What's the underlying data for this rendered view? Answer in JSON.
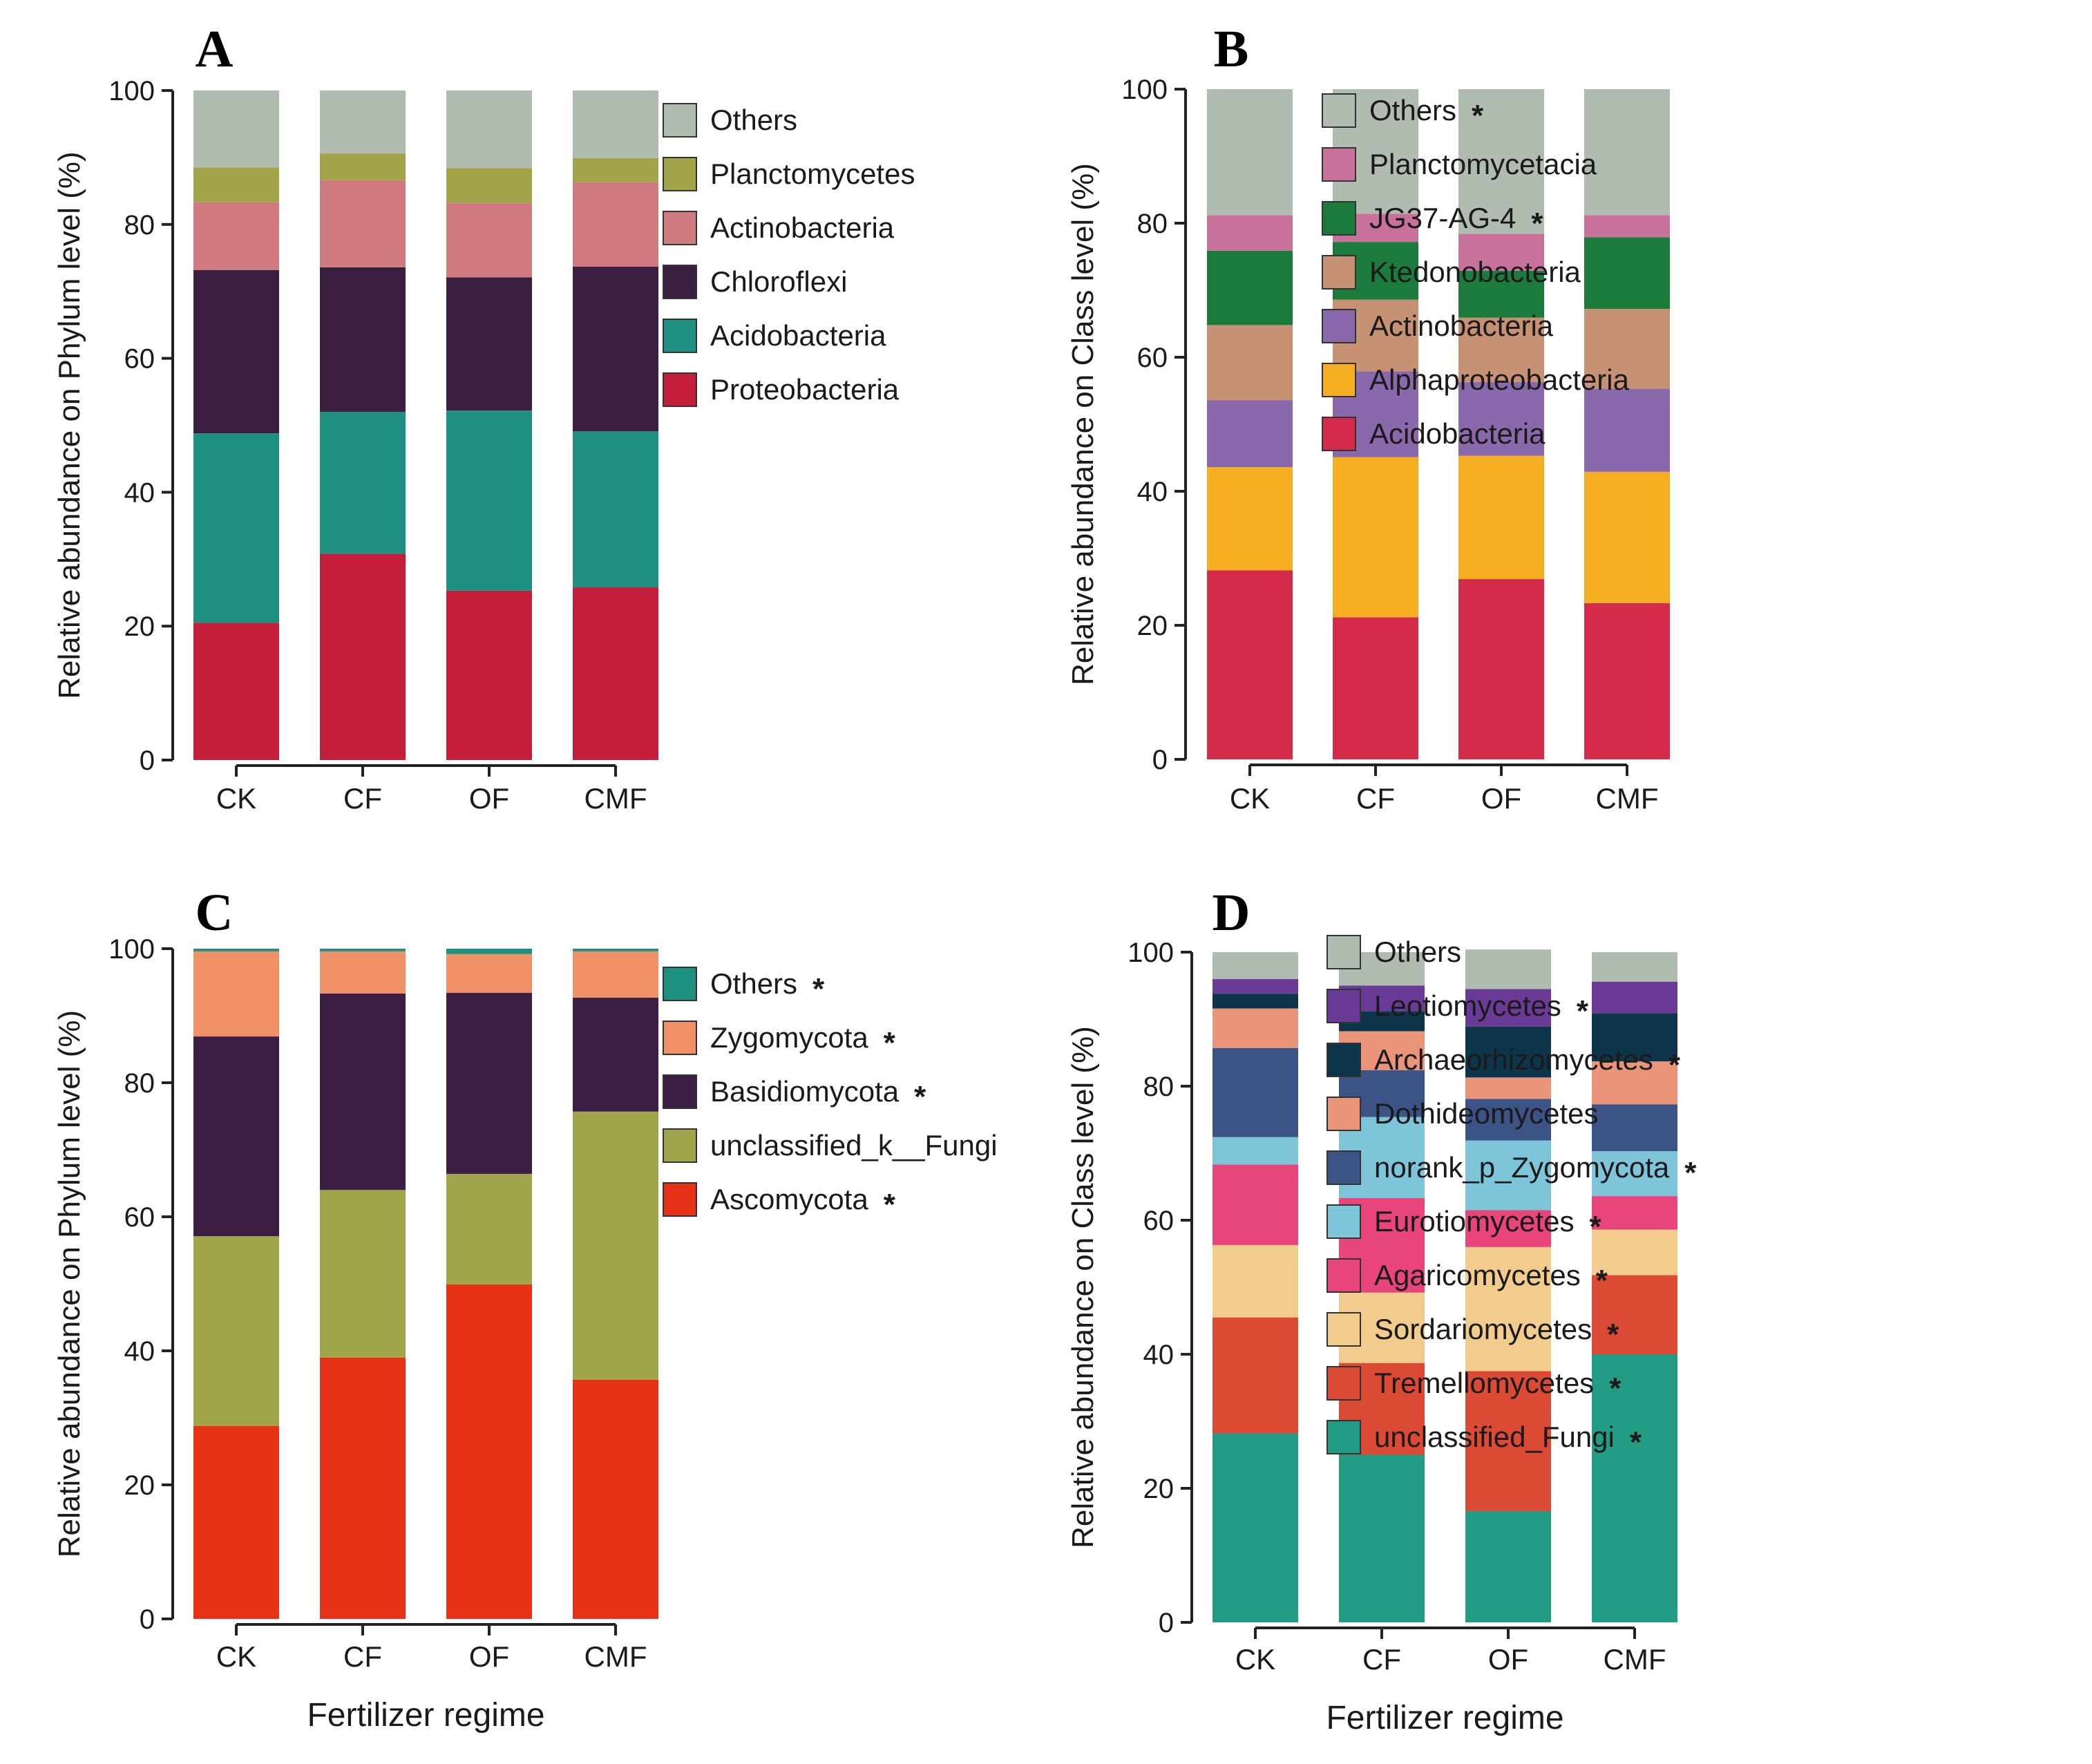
{
  "chart_data": [
    {
      "type": "bar",
      "stacked": true,
      "panel": "A",
      "ylabel": "Relative abundance on Phylum level (%)",
      "xlabel": "",
      "ylim": [
        0,
        100
      ],
      "yticks": [
        "0",
        "20",
        "40",
        "60",
        "80",
        "100"
      ],
      "categories": [
        "CK",
        "CF",
        "OF",
        "CMF"
      ],
      "legend_position": "right",
      "series": [
        {
          "name": "Proteobacteria",
          "color": "#c41e3a",
          "star": "",
          "values": [
            20.5,
            30.8,
            25.3,
            25.8
          ]
        },
        {
          "name": "Acidobacteria",
          "color": "#1e8f80",
          "star": "",
          "values": [
            28.3,
            21.2,
            26.9,
            23.3
          ]
        },
        {
          "name": "Chloroflexi",
          "color": "#3b1f40",
          "star": "",
          "values": [
            24.4,
            21.6,
            19.9,
            24.6
          ]
        },
        {
          "name": "Actinobacteria",
          "color": "#cf7b80",
          "star": "",
          "values": [
            10.1,
            13.0,
            11.1,
            12.6
          ]
        },
        {
          "name": "Planctomycetes",
          "color": "#a3a34a",
          "star": "",
          "values": [
            5.2,
            4.0,
            5.2,
            3.6
          ]
        },
        {
          "name": "Others",
          "color": "#b0bcb0",
          "star": "",
          "values": [
            11.5,
            9.4,
            11.6,
            10.1
          ]
        }
      ]
    },
    {
      "type": "bar",
      "stacked": true,
      "panel": "B",
      "ylabel": "Relative abundance on Class level (%)",
      "xlabel": "",
      "ylim": [
        0,
        100
      ],
      "yticks": [
        "0",
        "20",
        "40",
        "60",
        "80",
        "100"
      ],
      "categories": [
        "CK",
        "CF",
        "OF",
        "CMF"
      ],
      "legend_position": "right",
      "series": [
        {
          "name": "Acidobacteria",
          "color": "#d42b4b",
          "star": "",
          "values": [
            28.2,
            21.2,
            26.9,
            23.3
          ]
        },
        {
          "name": "Alphaproteobacteria",
          "color": "#f5ad22",
          "star": "",
          "values": [
            15.4,
            23.9,
            18.4,
            19.6
          ]
        },
        {
          "name": "Actinobacteria",
          "color": "#8a68ac",
          "star": "",
          "values": [
            10.0,
            12.8,
            11.0,
            12.4
          ]
        },
        {
          "name": "Ktedonobacteria",
          "color": "#c79274",
          "star": "",
          "values": [
            11.2,
            10.7,
            9.6,
            11.9
          ]
        },
        {
          "name": "JG37-AG-4",
          "color": "#1c7a3c",
          "star": "*",
          "values": [
            11.1,
            8.6,
            7.0,
            10.7
          ]
        },
        {
          "name": "Planctomycetacia",
          "color": "#c7719b",
          "star": "",
          "values": [
            5.3,
            4.2,
            5.5,
            3.3
          ]
        },
        {
          "name": "Others",
          "color": "#b0bcb0",
          "star": "*",
          "values": [
            18.8,
            18.6,
            21.6,
            18.8
          ]
        }
      ]
    },
    {
      "type": "bar",
      "stacked": true,
      "panel": "C",
      "ylabel": "Relative abundance on Phylum level (%)",
      "xlabel": "Fertilizer regime",
      "ylim": [
        0,
        100
      ],
      "yticks": [
        "0",
        "20",
        "40",
        "60",
        "80",
        "100"
      ],
      "categories": [
        "CK",
        "CF",
        "OF",
        "CMF"
      ],
      "legend_position": "right",
      "series": [
        {
          "name": "Ascomycota",
          "color": "#e63217",
          "star": "*",
          "values": [
            28.8,
            39.0,
            49.9,
            35.7
          ]
        },
        {
          "name": "unclassified_k__Fungi",
          "color": "#a0a44a",
          "star": "",
          "values": [
            28.3,
            25.0,
            16.5,
            40.0
          ]
        },
        {
          "name": "Basidiomycota",
          "color": "#3c1d44",
          "star": "*",
          "values": [
            29.8,
            29.3,
            27.0,
            17.0
          ]
        },
        {
          "name": "Zygomycota",
          "color": "#ef9066",
          "star": "*",
          "values": [
            12.7,
            6.3,
            5.8,
            6.9
          ]
        },
        {
          "name": "Others",
          "color": "#1e9080",
          "star": "*",
          "values": [
            0.4,
            0.4,
            0.8,
            0.4
          ]
        }
      ]
    },
    {
      "type": "bar",
      "stacked": true,
      "panel": "D",
      "ylabel": "Relative abundance on Class level (%)",
      "xlabel": "Fertilizer regime",
      "ylim": [
        0,
        100
      ],
      "yticks": [
        "0",
        "20",
        "40",
        "60",
        "80",
        "100"
      ],
      "categories": [
        "CK",
        "CF",
        "OF",
        "CMF"
      ],
      "legend_position": "right",
      "series": [
        {
          "name": "unclassified_Fungi",
          "color": "#239c85",
          "star": "*",
          "values": [
            28.2,
            25.0,
            16.6,
            40.0
          ]
        },
        {
          "name": "Tremellomycetes",
          "color": "#da4a35",
          "star": "*",
          "values": [
            17.3,
            13.7,
            20.9,
            11.8
          ]
        },
        {
          "name": "Sordariomycetes",
          "color": "#f2cc8c",
          "star": "*",
          "values": [
            10.8,
            10.5,
            18.5,
            6.8
          ]
        },
        {
          "name": "Agaricomycetes",
          "color": "#e8457a",
          "star": "*",
          "values": [
            12.0,
            14.1,
            5.5,
            5.0
          ]
        },
        {
          "name": "Eurotiomycetes",
          "color": "#7ec5da",
          "star": "*",
          "values": [
            4.1,
            12.1,
            10.4,
            6.7
          ]
        },
        {
          "name": "norank_p_Zygomycota",
          "color": "#3c5386",
          "star": "*",
          "values": [
            13.3,
            7.0,
            6.2,
            7.0
          ]
        },
        {
          "name": "Dothideomycetes",
          "color": "#ea9479",
          "star": "",
          "values": [
            5.9,
            5.8,
            3.2,
            6.4
          ]
        },
        {
          "name": "Archaeorhizomycetes",
          "color": "#0c3549",
          "star": "*",
          "values": [
            2.2,
            3.0,
            7.6,
            7.2
          ]
        },
        {
          "name": "Leotiomycetes",
          "color": "#6a3a97",
          "star": "*",
          "values": [
            2.2,
            3.8,
            5.6,
            4.7
          ]
        },
        {
          "name": "Others",
          "color": "#b0bcb0",
          "star": "",
          "values": [
            4.0,
            5.0,
            5.9,
            4.4
          ]
        }
      ]
    }
  ]
}
